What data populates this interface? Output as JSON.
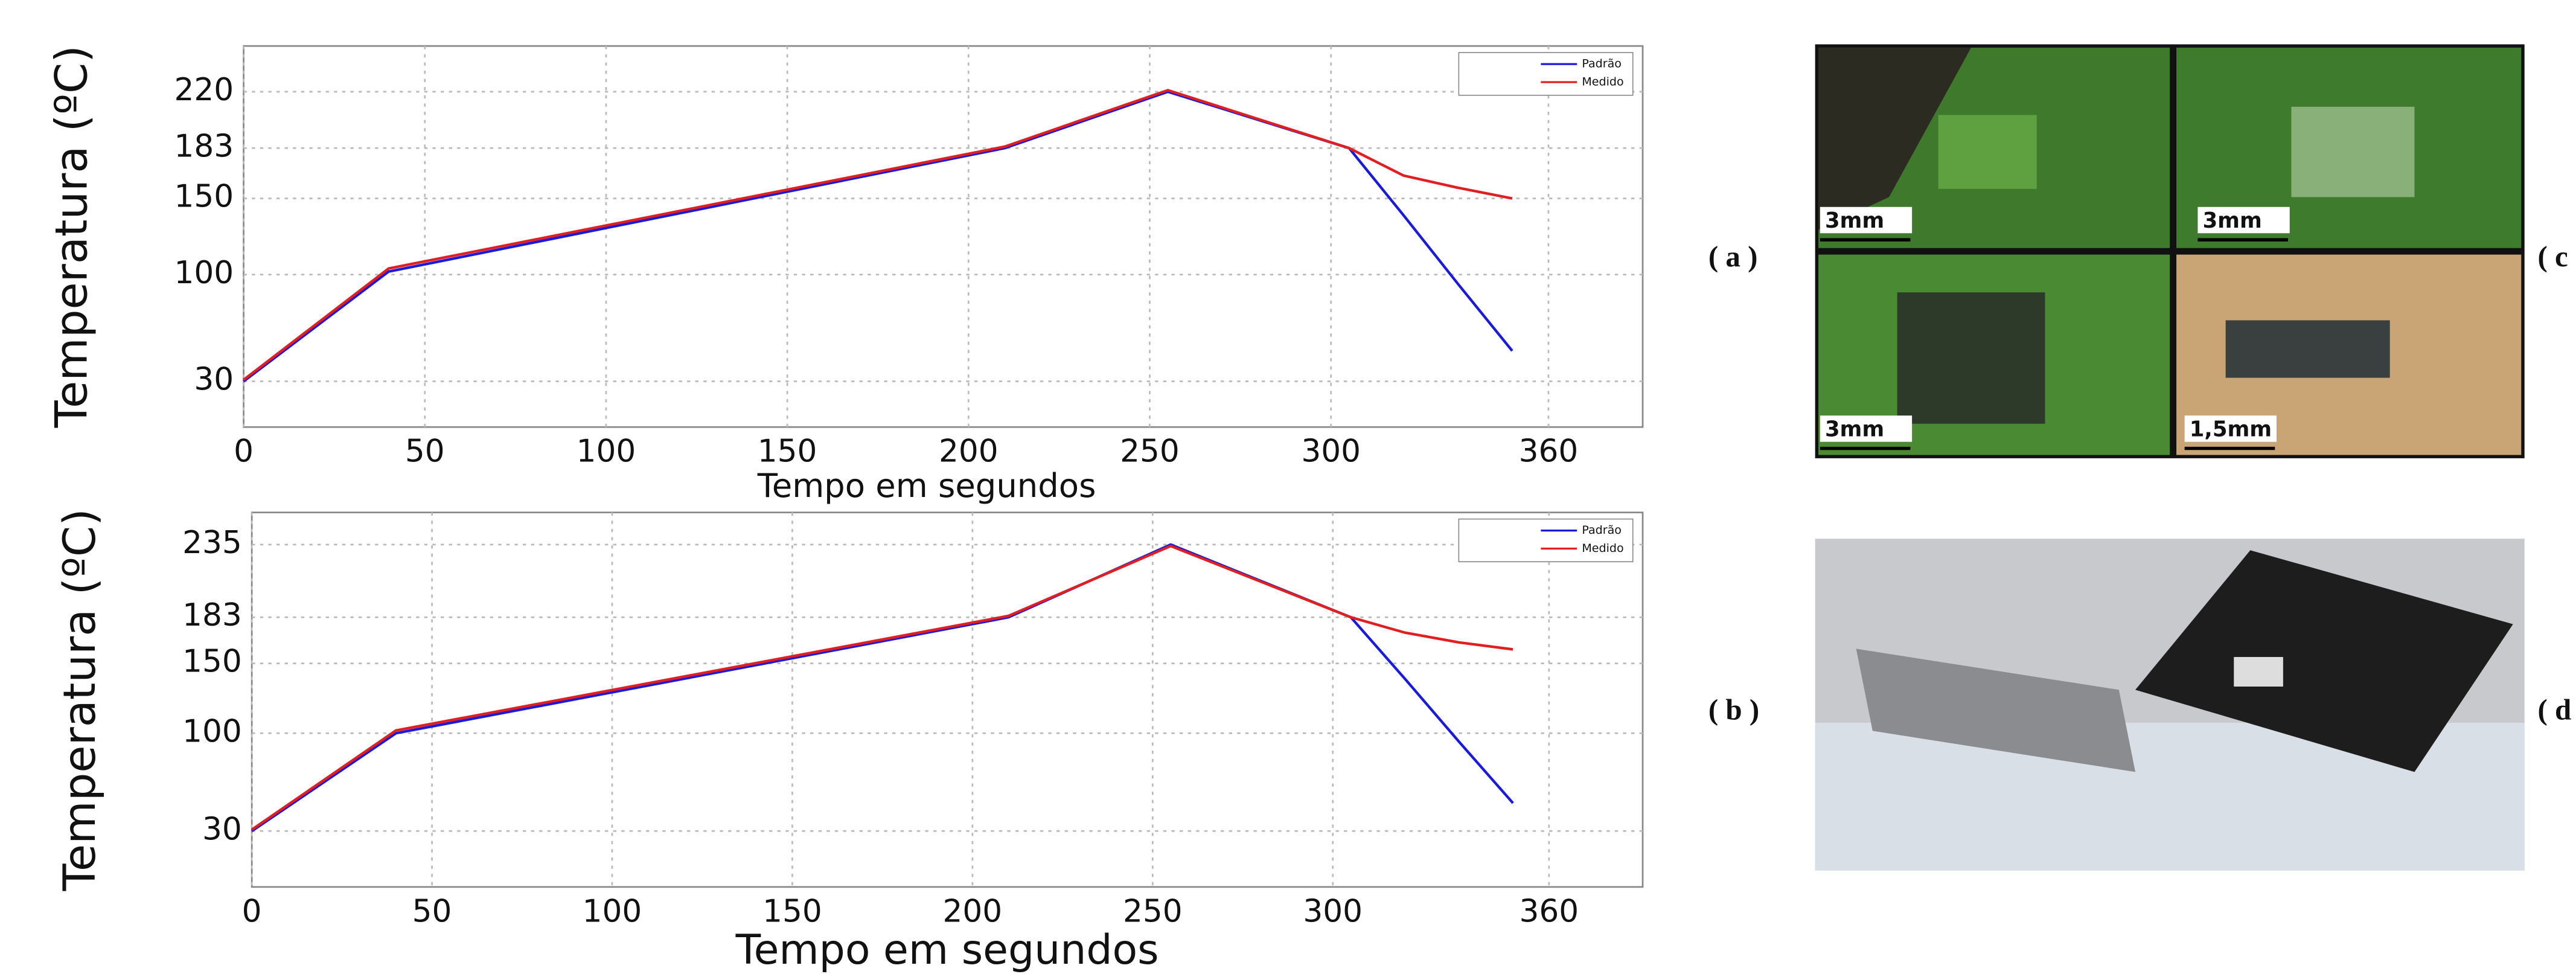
{
  "chart_data": [
    {
      "type": "line",
      "ylabel": "Temperatura (ºC)",
      "xlabel": "Tempo em segundos",
      "x": [
        0,
        40,
        210,
        255,
        305,
        320,
        335,
        350
      ],
      "series": [
        {
          "name": "Padrão",
          "color": "#1a1adc",
          "values": [
            30,
            102,
            183,
            220,
            183,
            139,
            94,
            50
          ]
        },
        {
          "name": "Medido",
          "color": "#e02020",
          "values": [
            31,
            104,
            184,
            221,
            183,
            165,
            157,
            150
          ]
        }
      ],
      "xlim": [
        0,
        386
      ],
      "xticks": [
        0,
        50,
        100,
        150,
        200,
        250,
        300,
        360
      ],
      "ylim": [
        0,
        250
      ],
      "yticks": [
        30,
        100,
        150,
        183,
        220
      ],
      "grid": true,
      "legend": "top-right"
    },
    {
      "type": "line",
      "ylabel": "Temperatura (ºC)",
      "xlabel": "Tempo em segundos",
      "x": [
        0,
        40,
        210,
        255,
        305,
        320,
        335,
        350
      ],
      "series": [
        {
          "name": "Padrão",
          "color": "#1a1adc",
          "values": [
            30,
            100,
            183,
            235,
            183,
            139,
            94,
            50
          ]
        },
        {
          "name": "Medido",
          "color": "#e02020",
          "values": [
            31,
            102,
            184,
            234,
            183,
            172,
            165,
            160
          ]
        }
      ],
      "xlim": [
        0,
        386
      ],
      "xticks": [
        0,
        50,
        100,
        150,
        200,
        250,
        300,
        360
      ],
      "ylim": [
        -10,
        258
      ],
      "yticks": [
        30,
        100,
        150,
        183,
        235
      ],
      "grid": true,
      "legend": "top-right"
    }
  ],
  "panel_labels": [
    "( a )",
    "( b )",
    "( c",
    "( d"
  ],
  "photo_scale_labels": [
    "3mm",
    "3mm",
    "3mm",
    "1,5mm"
  ]
}
